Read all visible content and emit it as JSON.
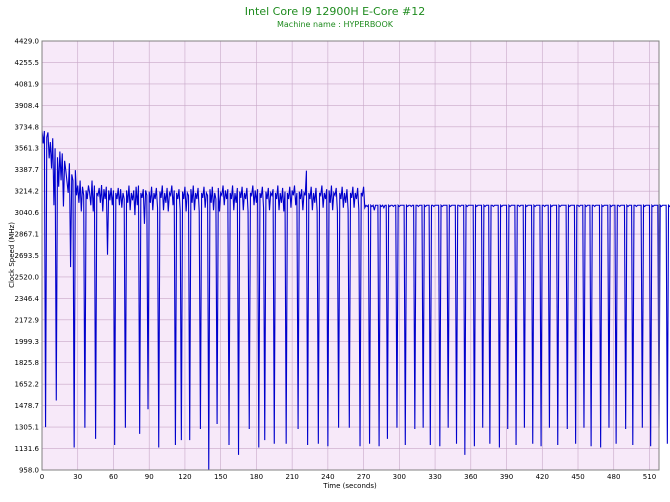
{
  "chart_data": {
    "type": "line",
    "title": "Intel Core I9 12900H E-Core #12",
    "subtitle": "Machine name : HYPERBOOK",
    "xlabel": "Time (seconds)",
    "ylabel": "Clock Speed (MHz)",
    "xlim": [
      0,
      518
    ],
    "ylim": [
      958.0,
      4429.0
    ],
    "x_ticks": [
      0,
      30,
      60,
      90,
      120,
      150,
      180,
      210,
      240,
      270,
      300,
      330,
      360,
      390,
      420,
      450,
      480,
      510
    ],
    "y_ticks": [
      958.0,
      1131.6,
      1305.1,
      1478.7,
      1652.2,
      1825.8,
      1999.3,
      2172.9,
      2346.4,
      2520.0,
      2693.5,
      2867.1,
      3040.6,
      3214.2,
      3387.7,
      3561.3,
      3734.8,
      3908.4,
      4081.9,
      4255.5,
      4429.0
    ],
    "grid": true,
    "colors": {
      "line": "#0000cc",
      "plot_background": "#f7e9f9",
      "grid": "#c8a8c8",
      "title": "#1e8b1e"
    },
    "series": [
      {
        "sampling_interval_seconds": 1,
        "values": [
          3706,
          3600,
          3701,
          1305,
          3650,
          3690,
          3480,
          3612,
          3398,
          3642,
          3100,
          3560,
          1520,
          3488,
          3250,
          3535,
          3302,
          3520,
          3090,
          3460,
          3380,
          3290,
          3200,
          3440,
          2600,
          3350,
          3300,
          1140,
          3384,
          3180,
          3260,
          3120,
          3300,
          3050,
          3250,
          3180,
          1300,
          3220,
          3150,
          3260,
          3200,
          3100,
          3300,
          3050,
          3260,
          1210,
          3200,
          3180,
          3240,
          3120,
          3264,
          3050,
          3230,
          3150,
          3250,
          2700,
          3220,
          3140,
          3240,
          3100,
          3220,
          1160,
          3200,
          3150,
          3240,
          3100,
          3230,
          3080,
          3200,
          3150,
          1300,
          3220,
          3120,
          3260,
          3060,
          3200,
          3140,
          3220,
          3020,
          3250,
          3100,
          3260,
          1250,
          3200,
          3160,
          3230,
          2950,
          3220,
          3180,
          1450,
          3210,
          3120,
          3250,
          3060,
          3200,
          3150,
          3240,
          3080,
          1140,
          3210,
          3160,
          3260,
          3060,
          3200,
          3120,
          3240,
          3050,
          3200,
          3180,
          3260,
          3100,
          3220,
          1160,
          3200,
          3150,
          3230,
          3060,
          1200,
          3210,
          3150,
          3250,
          3050,
          3200,
          3180,
          1200,
          3230,
          3120,
          3260,
          3060,
          3200,
          3150,
          3240,
          3050,
          1290,
          3200,
          3160,
          3250,
          3080,
          3200,
          3180,
          958,
          3230,
          3120,
          3250,
          3060,
          3200,
          3150,
          1330,
          3240,
          3050,
          3200,
          3180,
          3260,
          3100,
          3220,
          3150,
          3230,
          1160,
          3200,
          3150,
          3260,
          3060,
          3200,
          3120,
          3240,
          1080,
          3210,
          3160,
          3250,
          3060,
          3200,
          3150,
          3240,
          3050,
          1290,
          3200,
          3180,
          3260,
          3100,
          3220,
          3120,
          3230,
          1140,
          3200,
          3160,
          3250,
          3080,
          1200,
          3210,
          3150,
          3240,
          3060,
          3200,
          3180,
          3230,
          1170,
          3200,
          3150,
          3260,
          3060,
          3200,
          3120,
          3240,
          3050,
          3210,
          1170,
          3200,
          3150,
          3250,
          3080,
          3220,
          3180,
          3260,
          3100,
          3200,
          1290,
          3210,
          3150,
          3230,
          3060,
          3200,
          3180,
          3380,
          1160,
          3200,
          3150,
          3250,
          3060,
          3200,
          3120,
          3240,
          3050,
          1170,
          3200,
          3180,
          3260,
          3080,
          3200,
          3150,
          3230,
          1150,
          3220,
          3120,
          3260,
          3060,
          3200,
          3180,
          3240,
          3050,
          1300,
          3200,
          3150,
          3250,
          3080,
          3200,
          3120,
          3230,
          3060,
          1300,
          3200,
          3160,
          3250,
          3080,
          3200,
          3150,
          3240,
          3060,
          1150,
          3200,
          3180,
          3250,
          3080,
          3100,
          3090,
          3100,
          1170,
          3100,
          3090,
          3100,
          3060,
          3100,
          3100,
          3100,
          1150,
          3100,
          3090,
          3100,
          3080,
          3100,
          3100,
          1210,
          3100,
          3090,
          3100,
          3100,
          3090,
          3100,
          3100,
          1300,
          3100,
          3090,
          3100,
          3100,
          3100,
          3100,
          1160,
          3100,
          3090,
          3100,
          3100,
          3090,
          3100,
          3100,
          1290,
          3100,
          3100,
          3090,
          3100,
          3100,
          3100,
          1300,
          3100,
          3090,
          3100,
          3100,
          3100,
          1160,
          3100,
          3100,
          3090,
          3100,
          3100,
          3100,
          3100,
          1150,
          3100,
          3090,
          3100,
          3100,
          3100,
          3100,
          1300,
          3100,
          3090,
          3100,
          3100,
          3100,
          3100,
          1170,
          3100,
          3100,
          3090,
          3100,
          3100,
          3100,
          1080,
          3100,
          3090,
          3100,
          3100,
          3100,
          3100,
          3100,
          1150,
          3100,
          3090,
          3100,
          3100,
          3100,
          3100,
          1300,
          3100,
          3090,
          3100,
          3100,
          3100,
          1170,
          3100,
          3100,
          3090,
          3100,
          3100,
          3100,
          3100,
          1140,
          3100,
          3090,
          3100,
          3100,
          3100,
          3100,
          1290,
          3100,
          3090,
          3100,
          3100,
          3100,
          3100,
          1160,
          3100,
          3100,
          3090,
          3100,
          3100,
          3100,
          1300,
          3100,
          3090,
          3100,
          3100,
          3100,
          3100,
          1170,
          3100,
          3090,
          3100,
          3100,
          3100,
          3100,
          1150,
          3100,
          3100,
          3090,
          3100,
          3100,
          3100,
          1300,
          3100,
          3090,
          3100,
          3100,
          3100,
          3100,
          1160,
          3100,
          3090,
          3100,
          3100,
          3100,
          3100,
          3100,
          1290,
          3100,
          3090,
          3100,
          3100,
          3100,
          3100,
          1170,
          3100,
          3100,
          3090,
          3100,
          3100,
          3100,
          1300,
          3100,
          3090,
          3100,
          3100,
          3100,
          1150,
          3100,
          3100,
          3090,
          3100,
          3100,
          3100,
          3100,
          1140,
          3100,
          3090,
          3100,
          3100,
          3100,
          3100,
          1300,
          3100,
          3090,
          3100,
          3100,
          3100,
          1170,
          3100,
          3100,
          3090,
          3100,
          3100,
          3100,
          3100,
          1290,
          3100,
          3090,
          3100,
          3100,
          3100,
          1160,
          3100,
          3100,
          3090,
          3100,
          3100,
          3100,
          3100,
          1300,
          3100,
          3090,
          3100,
          3100,
          3100,
          3100,
          1150,
          3100,
          3090,
          3100,
          3100,
          3100,
          3100,
          1300,
          3100,
          3090,
          3100,
          3100,
          3100,
          3100,
          1170,
          3100,
          3090,
          3100,
          3100,
          3100,
          3100,
          1300,
          3100,
          3090,
          3100,
          3100,
          3100,
          1170,
          3100,
          3100,
          3090,
          3100
        ]
      }
    ]
  }
}
